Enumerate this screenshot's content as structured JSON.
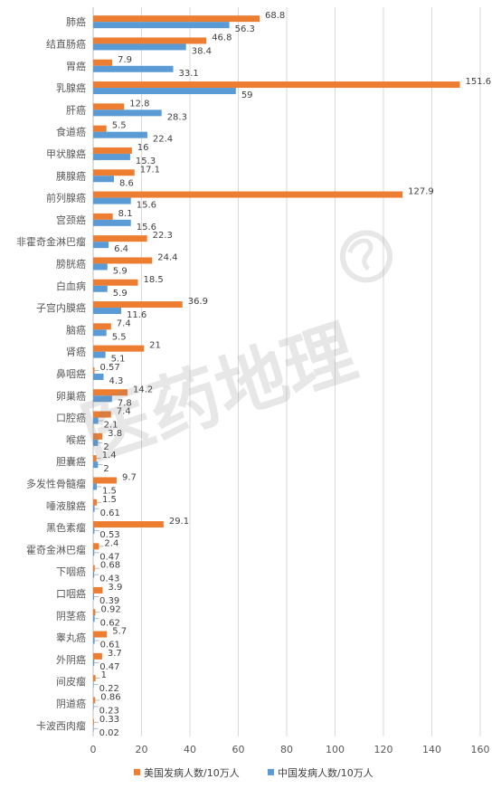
{
  "chart_data": {
    "type": "bar",
    "orientation": "horizontal",
    "categories": [
      "肺癌",
      "结直肠癌",
      "胃癌",
      "乳腺癌",
      "肝癌",
      "食道癌",
      "甲状腺癌",
      "胰腺癌",
      "前列腺癌",
      "宫颈癌",
      "非霍奇金淋巴瘤",
      "膀胱癌",
      "白血病",
      "子宫内膜癌",
      "脑癌",
      "肾癌",
      "鼻咽癌",
      "卵巢癌",
      "口腔癌",
      "喉癌",
      "胆囊癌",
      "多发性骨髓瘤",
      "唾液腺癌",
      "黑色素瘤",
      "霍奇金淋巴瘤",
      "下咽癌",
      "口咽癌",
      "阴茎癌",
      "睾丸癌",
      "外阴癌",
      "间皮瘤",
      "阴道癌",
      "卡波西肉瘤"
    ],
    "series": [
      {
        "name": "美国发病人数/10万人",
        "color": "#ED7D31",
        "values": [
          68.8,
          46.8,
          7.9,
          151.6,
          12.8,
          5.5,
          16,
          17.1,
          127.9,
          8.1,
          22.3,
          24.4,
          18.5,
          36.9,
          7.4,
          21,
          0.57,
          14.2,
          7.4,
          3.8,
          1.4,
          9.7,
          1.5,
          29.1,
          2.4,
          0.68,
          3.9,
          0.92,
          5.7,
          3.7,
          1,
          0.86,
          0.33
        ],
        "labels": [
          "68.8",
          "46.8",
          "7.9",
          "151.6",
          "12.8",
          "5.5",
          "16",
          "17.1",
          "127.9",
          "8.1",
          "22.3",
          "24.4",
          "18.5",
          "36.9",
          "7.4",
          "21",
          "0.57",
          "14.2",
          "7.4",
          "3.8",
          "1.4",
          "9.7",
          "1.5",
          "29.1",
          "2.4",
          "0.68",
          "3.9",
          "0.92",
          "5.7",
          "3.7",
          "1",
          "0.86",
          "0.33"
        ]
      },
      {
        "name": "中国发病人数/10万人",
        "color": "#5B9BD5",
        "values": [
          56.3,
          38.4,
          33.1,
          59,
          28.3,
          22.4,
          15.3,
          8.6,
          15.6,
          15.6,
          6.4,
          5.9,
          5.9,
          11.6,
          5.5,
          5.1,
          4.3,
          7.8,
          2.1,
          2,
          2,
          1.5,
          0.61,
          0.53,
          0.47,
          0.43,
          0.39,
          0.62,
          0.61,
          0.47,
          0.22,
          0.23,
          0.02
        ],
        "labels": [
          "56.3",
          "38.4",
          "33.1",
          "59",
          "28.3",
          "22.4",
          "15.3",
          "8.6",
          "15.6",
          "15.6",
          "6.4",
          "5.9",
          "5.9",
          "11.6",
          "5.5",
          "5.1",
          "4.3",
          "7.8",
          "2.1",
          "2",
          "2",
          "1.5",
          "0.61",
          "0.53",
          "0.47",
          "0.43",
          "0.39",
          "0.62",
          "0.61",
          "0.47",
          "0.22",
          "0.23",
          "0.02"
        ]
      }
    ],
    "xlim": [
      0,
      160
    ],
    "xticks": [
      "0",
      "20",
      "40",
      "60",
      "80",
      "100",
      "120",
      "140",
      "160"
    ],
    "grid": true,
    "legend_position": "bottom",
    "watermark": "医药地理"
  }
}
